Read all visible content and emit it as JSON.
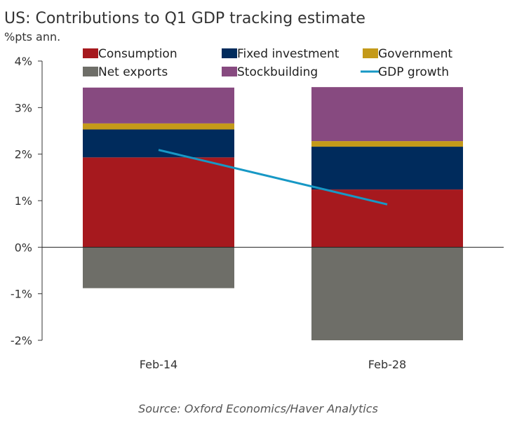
{
  "chart_data": {
    "type": "bar",
    "stacked": true,
    "title": "US: Contributions to Q1 GDP tracking estimate",
    "subtitle": "%pts ann.",
    "source": "Source: Oxford Economics/Haver Analytics",
    "categories": [
      "Feb-14",
      "Feb-28"
    ],
    "ylim": [
      -2,
      4
    ],
    "yticks": [
      -2,
      -1,
      0,
      1,
      2,
      3,
      4
    ],
    "ytick_labels": [
      "-2%",
      "-1%",
      "0%",
      "1%",
      "2%",
      "3%",
      "4%"
    ],
    "grid": false,
    "legend_position": "top",
    "series": [
      {
        "name": "Consumption",
        "color": "#A6191E",
        "values": [
          1.93,
          1.24
        ]
      },
      {
        "name": "Fixed investment",
        "color": "#002B5C",
        "values": [
          0.6,
          0.92
        ]
      },
      {
        "name": "Government",
        "color": "#C49A1A",
        "values": [
          0.13,
          0.12
        ]
      },
      {
        "name": "Net exports",
        "color": "#6E6E68",
        "values": [
          -0.88,
          -2.0
        ]
      },
      {
        "name": "Stockbuilding",
        "color": "#874A80",
        "values": [
          0.77,
          1.16
        ]
      }
    ],
    "line": {
      "name": "GDP growth",
      "color": "#1798C5",
      "values": [
        2.09,
        0.92
      ]
    }
  }
}
